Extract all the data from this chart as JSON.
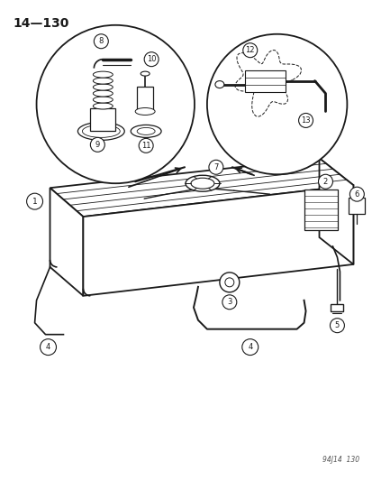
{
  "page_number": "14—130",
  "watermark": "94J14  130",
  "bg_color": "#ffffff",
  "line_color": "#1a1a1a",
  "fig_width": 4.14,
  "fig_height": 5.33,
  "dpi": 100
}
